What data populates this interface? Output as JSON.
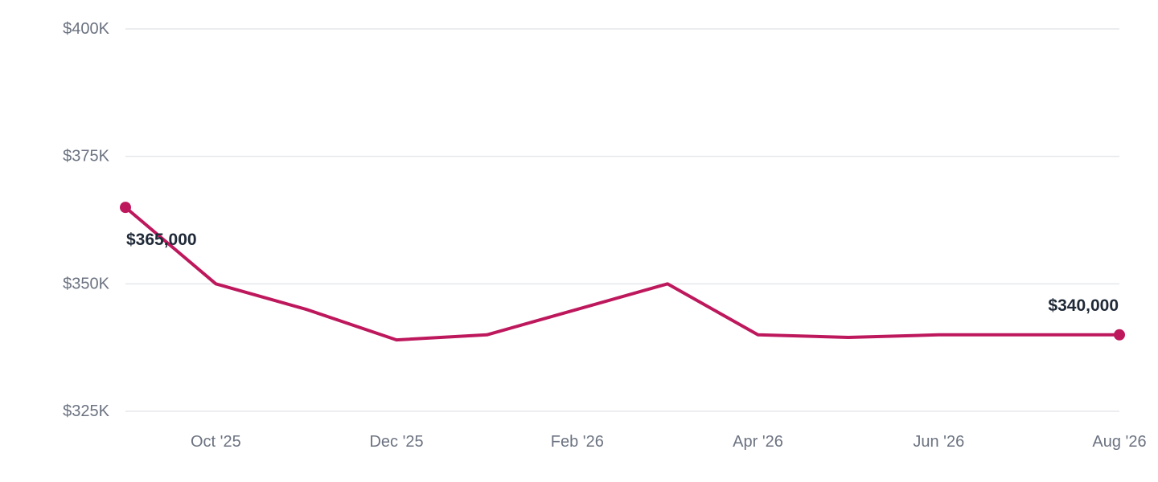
{
  "chart_data": {
    "type": "line",
    "title": "",
    "xlabel": "",
    "ylabel": "",
    "ylim": [
      325000,
      400000
    ],
    "y_ticks": [
      {
        "value": 400000,
        "label": "$400K"
      },
      {
        "value": 375000,
        "label": "$375K"
      },
      {
        "value": 350000,
        "label": "$350K"
      },
      {
        "value": 325000,
        "label": "$325K"
      }
    ],
    "x_ticks": [
      "Oct '25",
      "Dec '25",
      "Feb '26",
      "Apr '26",
      "Jun '26",
      "Aug '26"
    ],
    "grid": true,
    "legend": "none",
    "series": [
      {
        "color": "#be185d",
        "x": [
          "2025-09",
          "2025-10",
          "2025-11",
          "2025-12",
          "2026-01",
          "2026-02",
          "2026-03",
          "2026-04",
          "2026-05",
          "2026-06",
          "2026-07",
          "2026-08"
        ],
        "values": [
          365000,
          350000,
          345000,
          339000,
          340000,
          345000,
          350000,
          340000,
          339500,
          340000,
          340000,
          340000
        ]
      }
    ],
    "data_labels": [
      {
        "index": 0,
        "text": "$365,000"
      },
      {
        "index": 11,
        "text": "$340,000"
      }
    ]
  }
}
